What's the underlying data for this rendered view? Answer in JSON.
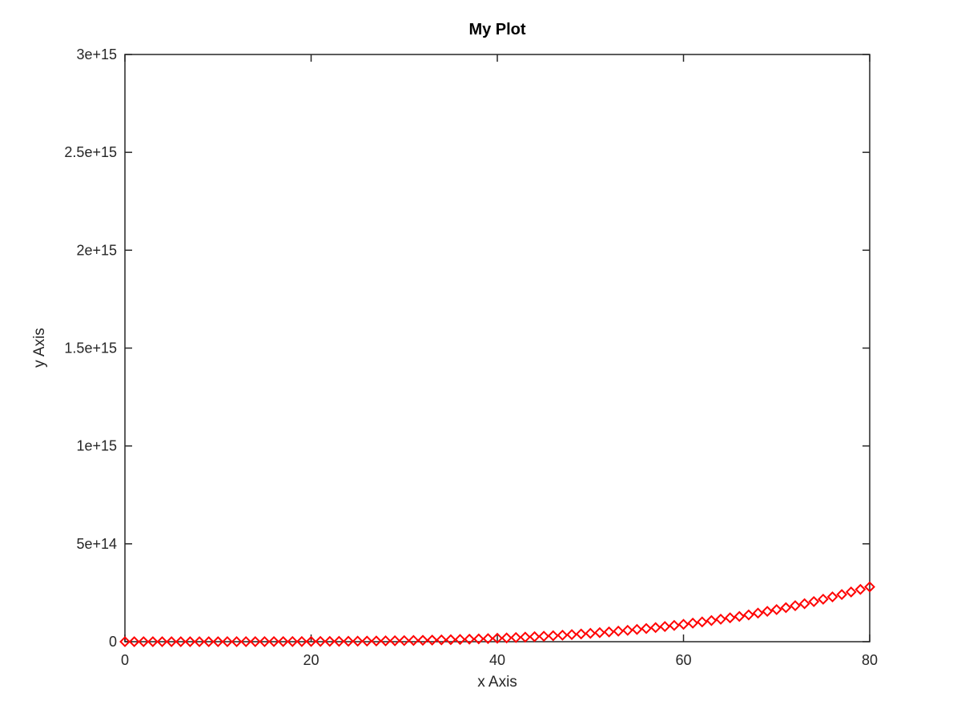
{
  "chart_data": {
    "type": "scatter",
    "title": "My Plot",
    "xlabel": "x Axis",
    "ylabel": "y Axis",
    "xlim": [
      0,
      80
    ],
    "ylim": [
      0,
      3000000000000000.0
    ],
    "grid": false,
    "box": true,
    "xticks": [
      0,
      20,
      40,
      60,
      80
    ],
    "xtick_labels": [
      "0",
      "20",
      "40",
      "60",
      "80"
    ],
    "yticks": [
      0,
      500000000000000.0,
      1000000000000000.0,
      1500000000000000.0,
      2000000000000000.0,
      2500000000000000.0,
      3000000000000000.0
    ],
    "ytick_labels": [
      "0",
      "5e+14",
      "1e+15",
      "1.5e+15",
      "2e+15",
      "2.5e+15",
      "3e+15"
    ],
    "marker": "diamond",
    "marker_color": "#ff0000",
    "axis_color": "#262626",
    "series": [
      {
        "x": [
          0,
          1,
          2,
          3,
          4,
          5,
          6,
          7,
          8,
          9,
          10,
          11,
          12,
          13,
          14,
          15,
          16,
          17,
          18,
          19,
          20,
          21,
          22,
          23,
          24,
          25,
          26,
          27,
          28,
          29,
          30,
          31,
          32,
          33,
          34,
          35,
          36,
          37,
          38,
          39,
          40,
          41,
          42,
          43,
          44,
          45,
          46,
          47,
          48,
          49,
          50,
          51,
          52,
          53,
          54,
          55,
          56,
          57,
          58,
          59,
          60,
          61,
          62,
          63,
          64,
          65,
          66,
          67,
          68,
          69,
          70,
          71,
          72,
          73,
          74,
          75,
          76,
          77,
          78,
          79,
          80
        ],
        "y": [
          0,
          6840000.0,
          109000000.0,
          554000000.0,
          1750000000.0,
          4270000000.0,
          8860000000.0,
          16400000000.0,
          28000000000.0,
          44900000000.0,
          68400000000.0,
          100000000000.0,
          142000000000.0,
          195000000000.0,
          263000000000.0,
          346000000000.0,
          448000000000.0,
          571000000000.0,
          718000000000.0,
          891000000000.0,
          1090000000000.0,
          1330000000000.0,
          1600000000000.0,
          1910000000000.0,
          2270000000000.0,
          2670000000000.0,
          3120000000000.0,
          3640000000000.0,
          4210000000000.0,
          4840000000000.0,
          5540000000000.0,
          6320000000000.0,
          7170000000000.0,
          8110000000000.0,
          9140000000000.0,
          10300000000000.0,
          11500000000000.0,
          12800000000000.0,
          14300000000000.0,
          15800000000000.0,
          17500000000000.0,
          19300000000000.0,
          21300000000000.0,
          23400000000000.0,
          25600000000000.0,
          28000000000000.0,
          30600000000000.0,
          33300000000000.0,
          36300000000000.0,
          39400000000000.0,
          42700000000000.0,
          46200000000000.0,
          50000000000000.0,
          53900000000000.0,
          58100000000000.0,
          62600000000000.0,
          67300000000000.0,
          72200000000000.0,
          77500000000000.0,
          83000000000000.0,
          88700000000000.0,
          94800000000000.0,
          101000000000000.0,
          108000000000000.0,
          115000000000000.0,
          122000000000000.0,
          129000000000000.0,
          137000000000000.0,
          146000000000000.0,
          155000000000000.0,
          164000000000000.0,
          174000000000000.0,
          184000000000000.0,
          194000000000000.0,
          205000000000000.0,
          217000000000000.0,
          229000000000000.0,
          241000000000000.0,
          254000000000000.0,
          267000000000000.0,
          280000000000000.0
        ]
      }
    ]
  }
}
